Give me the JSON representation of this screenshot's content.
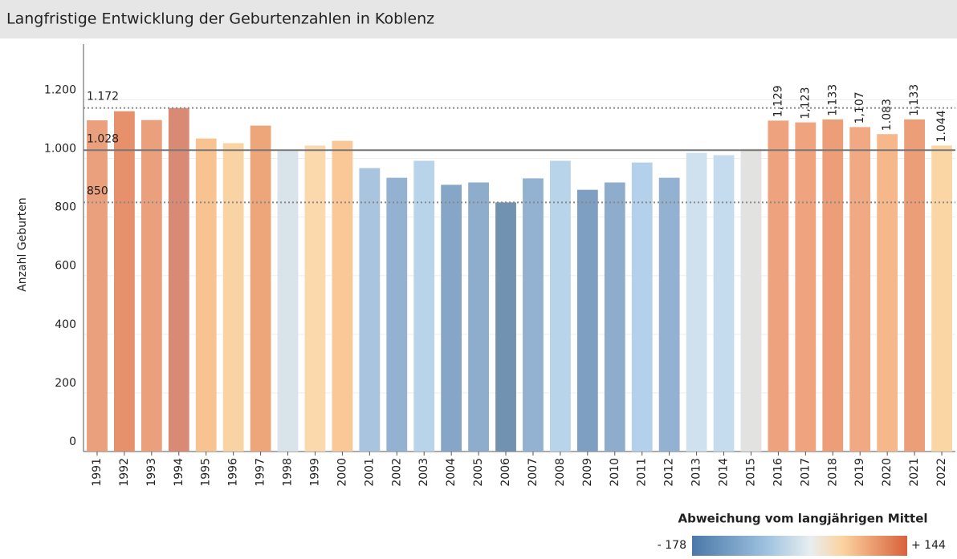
{
  "chart_data": {
    "type": "bar",
    "title": "Langfristige Entwicklung der Geburtenzahlen in Koblenz",
    "y_label": "Anzahl Geburten",
    "categories": [
      "1991",
      "1992",
      "1993",
      "1994",
      "1995",
      "1996",
      "1997",
      "1998",
      "1999",
      "2000",
      "2001",
      "2002",
      "2003",
      "2004",
      "2005",
      "2006",
      "2007",
      "2008",
      "2009",
      "2010",
      "2011",
      "2012",
      "2013",
      "2014",
      "2015",
      "2016",
      "2017",
      "2018",
      "2019",
      "2020",
      "2021",
      "2022"
    ],
    "values": [
      1130,
      1161,
      1131,
      1172,
      1068,
      1052,
      1112,
      1025,
      1044,
      1060,
      967,
      934,
      992,
      910,
      918,
      850,
      932,
      992,
      893,
      918,
      986,
      934,
      1019,
      1011,
      1033,
      1129,
      1123,
      1133,
      1107,
      1083,
      1133,
      1044
    ],
    "value_labels": [
      null,
      null,
      null,
      null,
      null,
      null,
      null,
      null,
      null,
      null,
      null,
      null,
      null,
      null,
      null,
      null,
      null,
      null,
      null,
      null,
      null,
      null,
      null,
      null,
      null,
      "1,129",
      "1,123",
      "1,133",
      "1,107",
      "1.083",
      "1,133",
      "1.044"
    ],
    "colors": [
      "#eaa07c",
      "#e6906c",
      "#eaa07c",
      "#d98a74",
      "#f8c391",
      "#fad3a4",
      "#eda57a",
      "#d8e3ea",
      "#fbd9ad",
      "#f9c896",
      "#a8c4de",
      "#93b2d1",
      "#b7d4eb",
      "#86a6c8",
      "#8eadcd",
      "#7192b0",
      "#93b2d1",
      "#b7d4eb",
      "#7f9fc2",
      "#8eadcd",
      "#b3d1ea",
      "#93b2d1",
      "#cfe1ee",
      "#c4dced",
      "#e2e2e0",
      "#eea27e",
      "#efa37e",
      "#ec9e78",
      "#f0a982",
      "#f6b88a",
      "#ec9e78",
      "#fbd6a5"
    ],
    "ylim": [
      0,
      1390
    ],
    "yticks": [
      0,
      200,
      400,
      600,
      800,
      {
        "value": 1000,
        "label": "1.000"
      },
      {
        "value": 1200,
        "label": "1.200"
      }
    ],
    "reference_lines": [
      {
        "value": 1172,
        "label": "1.172",
        "style": "dotted"
      },
      {
        "value": 1028,
        "label": "1.028",
        "style": "solid"
      },
      {
        "value": 850,
        "label": "850",
        "style": "dotted"
      }
    ],
    "legend": {
      "title": "Abweichung vom langjährigen Mittel",
      "min_label": "- 178",
      "max_label": "+ 144"
    }
  }
}
